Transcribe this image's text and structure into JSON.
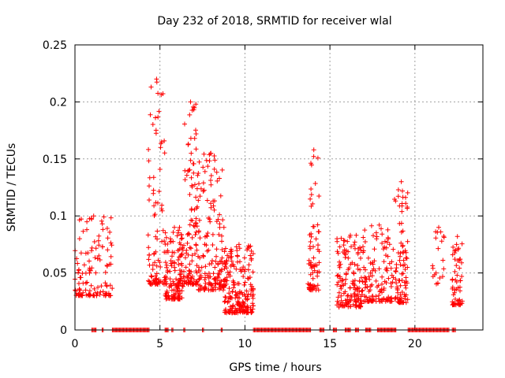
{
  "chart_data": {
    "type": "scatter",
    "title": "Day 232 of 2018, SRMTID for receiver wlal",
    "xlabel": "GPS time / hours",
    "ylabel": "SRMTID / TECUs",
    "xlim": [
      0,
      24
    ],
    "ylim": [
      0,
      0.25
    ],
    "xticks": [
      0,
      5,
      10,
      15,
      20
    ],
    "xtick_labels": [
      "0",
      "5",
      "10",
      "15",
      "20"
    ],
    "yticks": [
      0,
      0.05,
      0.1,
      0.15,
      0.2,
      0.25
    ],
    "ytick_labels": [
      "0",
      "0.05",
      "0.1",
      "0.15",
      "0.2",
      "0.25"
    ],
    "grid": true,
    "marker": "+",
    "color": "#ff0000",
    "clusters": [
      {
        "x": [
          0.0,
          2.2
        ],
        "ymin": 0.03,
        "ymax": 0.1,
        "count": 120
      },
      {
        "x": [
          4.3,
          5.3
        ],
        "ymin": 0.04,
        "ymax": 0.22,
        "count": 90
      },
      {
        "x": [
          5.3,
          6.4
        ],
        "ymin": 0.027,
        "ymax": 0.09,
        "count": 140
      },
      {
        "x": [
          6.4,
          7.2
        ],
        "ymin": 0.04,
        "ymax": 0.2,
        "count": 110
      },
      {
        "x": [
          7.2,
          8.8
        ],
        "ymin": 0.035,
        "ymax": 0.155,
        "count": 160
      },
      {
        "x": [
          8.8,
          10.5
        ],
        "ymin": 0.015,
        "ymax": 0.075,
        "count": 200
      },
      {
        "x": [
          13.7,
          14.4
        ],
        "ymin": 0.035,
        "ymax": 0.158,
        "count": 70
      },
      {
        "x": [
          15.4,
          17.0
        ],
        "ymin": 0.02,
        "ymax": 0.083,
        "count": 150
      },
      {
        "x": [
          17.0,
          18.8
        ],
        "ymin": 0.025,
        "ymax": 0.092,
        "count": 120
      },
      {
        "x": [
          18.8,
          19.6
        ],
        "ymin": 0.024,
        "ymax": 0.13,
        "count": 90
      },
      {
        "x": [
          21.0,
          21.8
        ],
        "ymin": 0.04,
        "ymax": 0.09,
        "count": 20
      },
      {
        "x": [
          22.2,
          22.8
        ],
        "ymin": 0.022,
        "ymax": 0.082,
        "count": 60
      }
    ],
    "zero_segments": [
      [
        1.0,
        1.3
      ],
      [
        1.6,
        1.7
      ],
      [
        2.2,
        4.4
      ],
      [
        5.3,
        5.5
      ],
      [
        5.7,
        5.8
      ],
      [
        6.4,
        6.5
      ],
      [
        7.5,
        7.6
      ],
      [
        8.6,
        8.7
      ],
      [
        10.5,
        13.9
      ],
      [
        14.4,
        14.7
      ],
      [
        15.2,
        15.4
      ],
      [
        15.9,
        16.2
      ],
      [
        16.5,
        16.7
      ],
      [
        17.1,
        17.4
      ],
      [
        17.8,
        18.9
      ],
      [
        19.6,
        22.0
      ],
      [
        22.2,
        22.4
      ]
    ]
  }
}
